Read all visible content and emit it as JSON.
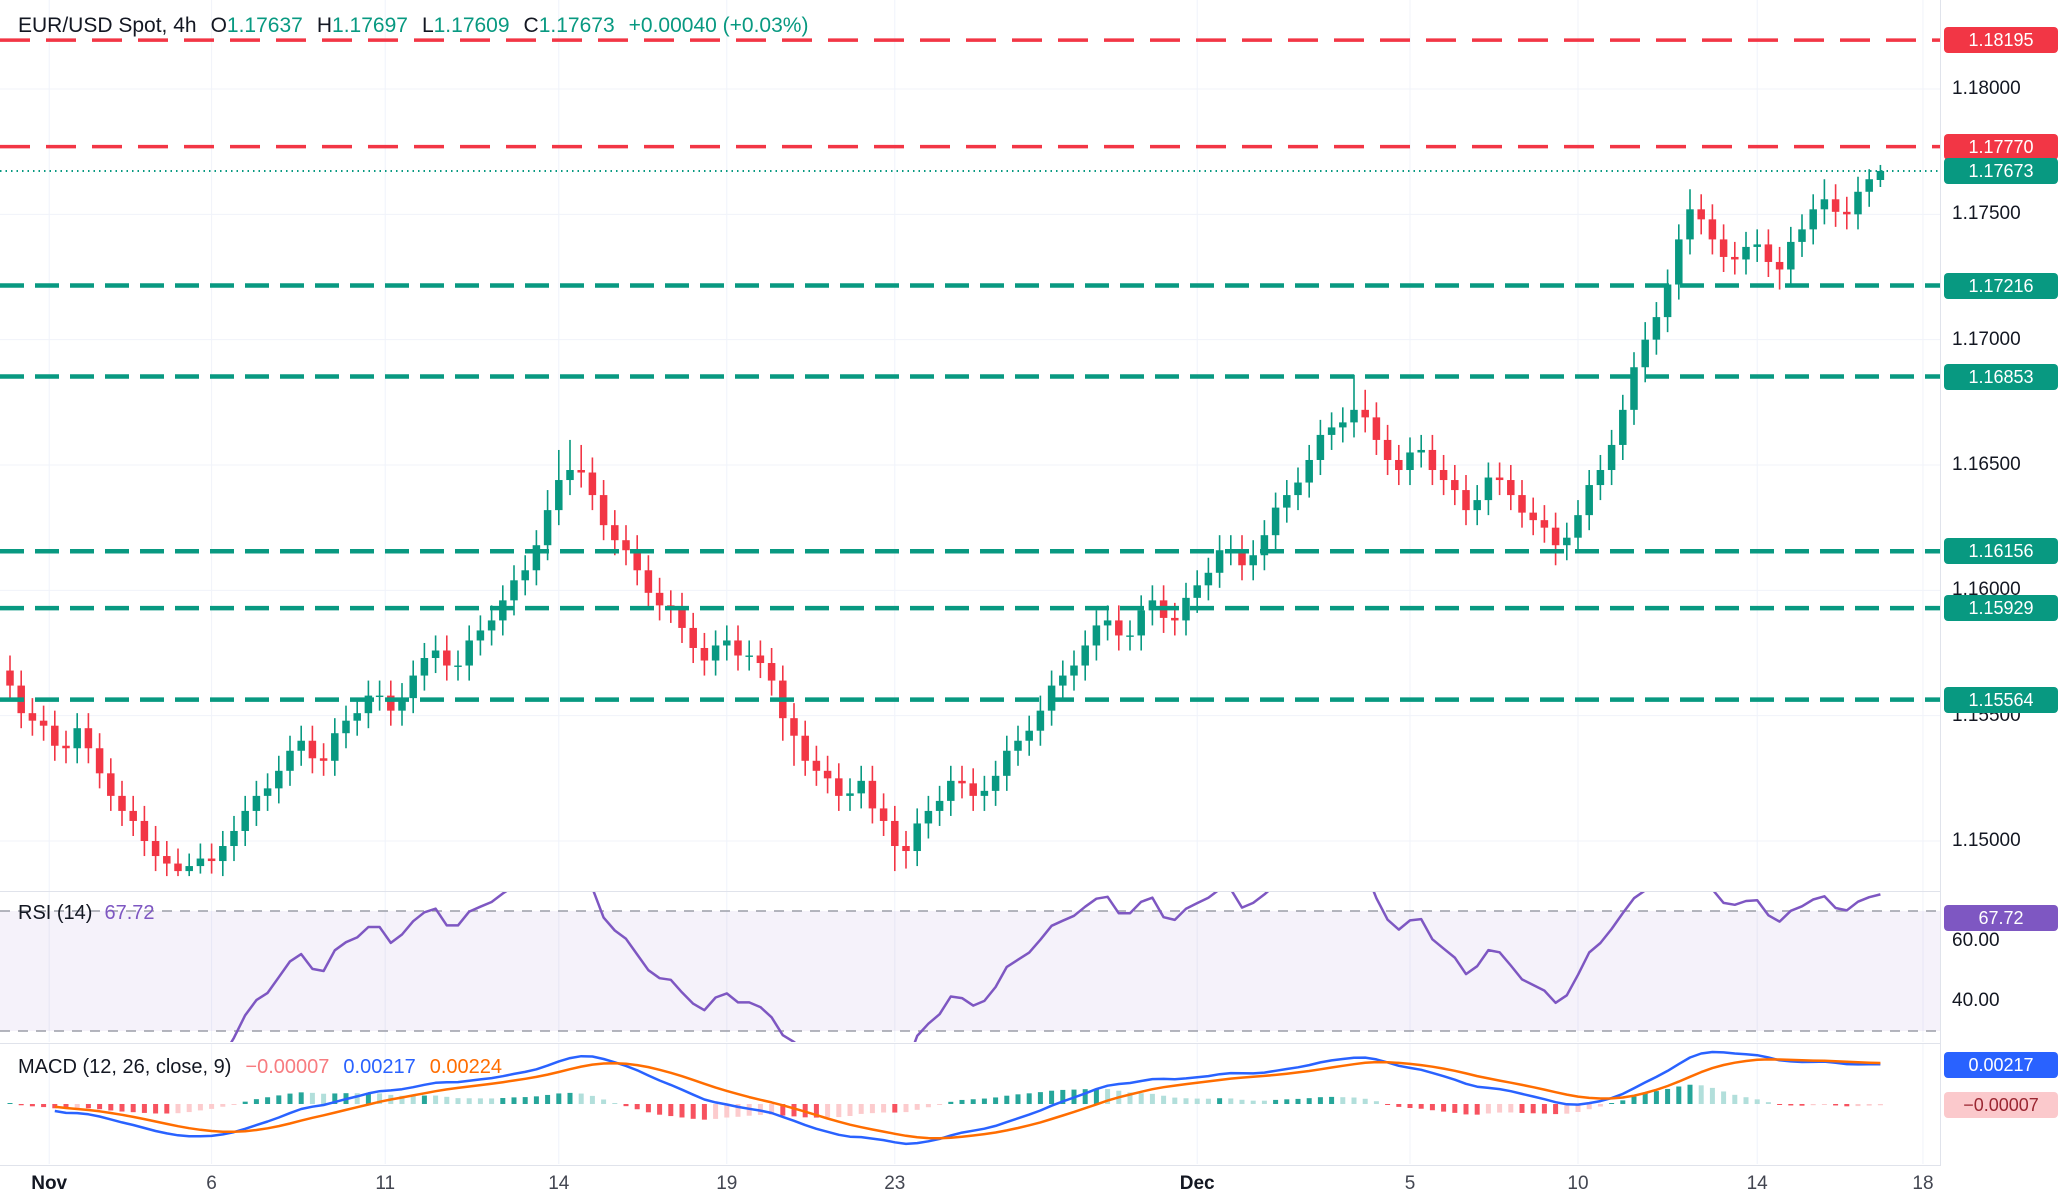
{
  "header": {
    "symbol": "EUR/USD Spot, 4h",
    "ohlc": {
      "o_label": "O",
      "o": "1.17637",
      "h_label": "H",
      "h": "1.17697",
      "l_label": "L",
      "l": "1.17609",
      "c_label": "C",
      "c": "1.17673"
    },
    "change": "+0.00040 (+0.03%)"
  },
  "colors": {
    "up": "#089981",
    "down": "#f23645",
    "resistance": "#f23645",
    "support": "#089981",
    "rsi": "#7e57c2",
    "macd_line": "#2962ff",
    "signal_line": "#ff6d00",
    "hist_pos": "#26a69a",
    "hist_pos_weak": "#b2dfdb",
    "hist_neg": "#f7525f",
    "hist_neg_weak": "#fccbcd",
    "grid": "#f0f3fa",
    "axis_text": "#131722"
  },
  "price_axis": {
    "ticks": [
      {
        "label": "1.18000",
        "value": 1.18
      },
      {
        "label": "1.17500",
        "value": 1.175
      },
      {
        "label": "1.17000",
        "value": 1.17
      },
      {
        "label": "1.16500",
        "value": 1.165
      },
      {
        "label": "1.16000",
        "value": 1.16
      },
      {
        "label": "1.15500",
        "value": 1.155
      },
      {
        "label": "1.15000",
        "value": 1.15
      }
    ]
  },
  "levels": [
    {
      "label": "1.18195",
      "value": 1.18195,
      "kind": "resistance"
    },
    {
      "label": "1.17770",
      "value": 1.1777,
      "kind": "resistance"
    },
    {
      "label": "1.17673",
      "value": 1.17673,
      "kind": "current"
    },
    {
      "label": "1.17216",
      "value": 1.17216,
      "kind": "support"
    },
    {
      "label": "1.16853",
      "value": 1.16853,
      "kind": "support"
    },
    {
      "label": "1.16156",
      "value": 1.16156,
      "kind": "support"
    },
    {
      "label": "1.15929",
      "value": 1.15929,
      "kind": "support"
    },
    {
      "label": "1.15564",
      "value": 1.15564,
      "kind": "support"
    }
  ],
  "time_axis": [
    {
      "label": "Nov",
      "i": 3.5,
      "bold": true
    },
    {
      "label": "6",
      "i": 18,
      "bold": false
    },
    {
      "label": "11",
      "i": 33.5,
      "bold": false
    },
    {
      "label": "14",
      "i": 49,
      "bold": false
    },
    {
      "label": "19",
      "i": 64,
      "bold": false
    },
    {
      "label": "23",
      "i": 79,
      "bold": false
    },
    {
      "label": "Dec",
      "i": 106,
      "bold": true
    },
    {
      "label": "5",
      "i": 125,
      "bold": false
    },
    {
      "label": "10",
      "i": 140,
      "bold": false
    },
    {
      "label": "14",
      "i": 156,
      "bold": false
    },
    {
      "label": "18",
      "i": 170.8,
      "bold": false
    }
  ],
  "rsi": {
    "legend": "RSI (14)",
    "value": "67.72",
    "value_num": 67.72,
    "period": 14,
    "upper_band": 70,
    "lower_band": 30,
    "axis_labels": [
      {
        "label": "60.00",
        "value": 60
      },
      {
        "label": "40.00",
        "value": 40
      }
    ]
  },
  "macd": {
    "legend": "MACD (12, 26, close, 9)",
    "params": [
      12,
      26,
      9
    ],
    "hist_value": "−0.00007",
    "macd_value": "0.00217",
    "signal_value": "0.00224",
    "hist_num": -7e-05,
    "macd_num": 0.00217,
    "signal_num": 0.00224
  },
  "chart_data": {
    "type": "candlestick",
    "title": "EUR/USD Spot, 4h",
    "symbol": "EUR/USD Spot",
    "interval": "4h",
    "x_range": [
      "Nov 1",
      "Dec 18"
    ],
    "ylim": [
      1.1468,
      1.1832
    ],
    "last_ohlc": {
      "open": 1.17637,
      "high": 1.17697,
      "low": 1.17609,
      "close": 1.17673
    },
    "levels_resistance": [
      1.18195,
      1.1777
    ],
    "levels_support": [
      1.17216,
      1.16853,
      1.16156,
      1.15929,
      1.15564
    ],
    "current_price": 1.17673,
    "candles": [
      [
        1.1568,
        1.1574,
        1.1556,
        1.1562
      ],
      [
        1.1562,
        1.1568,
        1.1545,
        1.1551
      ],
      [
        1.1551,
        1.1557,
        1.1542,
        1.1548
      ],
      [
        1.1548,
        1.1554,
        1.154,
        1.1546
      ],
      [
        1.1546,
        1.1552,
        1.1532,
        1.1538
      ],
      [
        1.1538,
        1.1544,
        1.1531,
        1.1537
      ],
      [
        1.1537,
        1.1551,
        1.1531,
        1.1545
      ],
      [
        1.1545,
        1.1551,
        1.1531,
        1.1537
      ],
      [
        1.1537,
        1.1543,
        1.1521,
        1.1527
      ],
      [
        1.1527,
        1.1533,
        1.1512,
        1.1518
      ],
      [
        1.1518,
        1.1524,
        1.1506,
        1.1512
      ],
      [
        1.1512,
        1.1518,
        1.1502,
        1.1508
      ],
      [
        1.1508,
        1.1514,
        1.1494,
        1.15
      ],
      [
        1.15,
        1.1506,
        1.1488,
        1.1494
      ],
      [
        1.1494,
        1.15,
        1.1486,
        1.1491
      ],
      [
        1.1491,
        1.1497,
        1.1486,
        1.1488
      ],
      [
        1.1488,
        1.1495,
        1.1486,
        1.149
      ],
      [
        1.149,
        1.1499,
        1.1487,
        1.1493
      ],
      [
        1.1493,
        1.1499,
        1.1487,
        1.1492
      ],
      [
        1.1492,
        1.1504,
        1.1486,
        1.1498
      ],
      [
        1.1498,
        1.151,
        1.1492,
        1.1504
      ],
      [
        1.1504,
        1.1518,
        1.1498,
        1.1512
      ],
      [
        1.1512,
        1.1524,
        1.1506,
        1.1518
      ],
      [
        1.1518,
        1.1527,
        1.1512,
        1.1521
      ],
      [
        1.1521,
        1.1534,
        1.1515,
        1.1528
      ],
      [
        1.1528,
        1.1542,
        1.1522,
        1.1536
      ],
      [
        1.1536,
        1.1546,
        1.153,
        1.154
      ],
      [
        1.154,
        1.1546,
        1.1527,
        1.1533
      ],
      [
        1.1533,
        1.1539,
        1.1526,
        1.1532
      ],
      [
        1.1532,
        1.1549,
        1.1526,
        1.1543
      ],
      [
        1.1543,
        1.1554,
        1.1537,
        1.1548
      ],
      [
        1.1548,
        1.1557,
        1.1542,
        1.1551
      ],
      [
        1.1551,
        1.1564,
        1.1545,
        1.1558
      ],
      [
        1.1558,
        1.1564,
        1.1552,
        1.1558
      ],
      [
        1.1558,
        1.1564,
        1.1546,
        1.1552
      ],
      [
        1.1552,
        1.1563,
        1.1546,
        1.1557
      ],
      [
        1.1557,
        1.1572,
        1.1551,
        1.1566
      ],
      [
        1.1566,
        1.1579,
        1.156,
        1.1573
      ],
      [
        1.1573,
        1.1582,
        1.1567,
        1.1576
      ],
      [
        1.1576,
        1.1582,
        1.1564,
        1.157
      ],
      [
        1.157,
        1.1576,
        1.1564,
        1.157
      ],
      [
        1.157,
        1.1586,
        1.1564,
        1.158
      ],
      [
        1.158,
        1.159,
        1.1574,
        1.1584
      ],
      [
        1.1584,
        1.1594,
        1.1578,
        1.1588
      ],
      [
        1.1588,
        1.1602,
        1.1582,
        1.1596
      ],
      [
        1.1596,
        1.161,
        1.159,
        1.1604
      ],
      [
        1.1604,
        1.1614,
        1.1598,
        1.1608
      ],
      [
        1.1608,
        1.1624,
        1.1602,
        1.1618
      ],
      [
        1.1618,
        1.164,
        1.1612,
        1.1632
      ],
      [
        1.1632,
        1.1656,
        1.1626,
        1.1644
      ],
      [
        1.1644,
        1.166,
        1.1638,
        1.1648
      ],
      [
        1.1648,
        1.1658,
        1.1641,
        1.1647
      ],
      [
        1.1647,
        1.1653,
        1.1632,
        1.1638
      ],
      [
        1.1638,
        1.1644,
        1.162,
        1.1626
      ],
      [
        1.1626,
        1.1632,
        1.1614,
        1.162
      ],
      [
        1.162,
        1.1626,
        1.161,
        1.1616
      ],
      [
        1.1616,
        1.1622,
        1.1602,
        1.1608
      ],
      [
        1.1608,
        1.1614,
        1.1593,
        1.1599
      ],
      [
        1.1599,
        1.1605,
        1.1588,
        1.1594
      ],
      [
        1.1594,
        1.16,
        1.1587,
        1.1593
      ],
      [
        1.1593,
        1.1599,
        1.1579,
        1.1585
      ],
      [
        1.1585,
        1.1591,
        1.1571,
        1.1577
      ],
      [
        1.1577,
        1.1583,
        1.1566,
        1.1572
      ],
      [
        1.1572,
        1.1584,
        1.1566,
        1.1578
      ],
      [
        1.1578,
        1.1586,
        1.1572,
        1.158
      ],
      [
        1.158,
        1.1586,
        1.1568,
        1.1574
      ],
      [
        1.1574,
        1.158,
        1.1568,
        1.1574
      ],
      [
        1.1574,
        1.158,
        1.1565,
        1.1571
      ],
      [
        1.1571,
        1.1577,
        1.1558,
        1.1564
      ],
      [
        1.1564,
        1.157,
        1.154,
        1.1549
      ],
      [
        1.1549,
        1.1555,
        1.153,
        1.1542
      ],
      [
        1.1542,
        1.1548,
        1.1526,
        1.1532
      ],
      [
        1.1532,
        1.1538,
        1.1522,
        1.1528
      ],
      [
        1.1528,
        1.1534,
        1.1519,
        1.1525
      ],
      [
        1.1525,
        1.1531,
        1.1512,
        1.1518
      ],
      [
        1.1518,
        1.1525,
        1.1512,
        1.1519
      ],
      [
        1.1519,
        1.153,
        1.1513,
        1.1524
      ],
      [
        1.1524,
        1.153,
        1.1507,
        1.1513
      ],
      [
        1.1513,
        1.1519,
        1.1502,
        1.1508
      ],
      [
        1.1508,
        1.1514,
        1.1488,
        1.1498
      ],
      [
        1.1498,
        1.1504,
        1.1489,
        1.1496
      ],
      [
        1.1496,
        1.1513,
        1.149,
        1.1507
      ],
      [
        1.1507,
        1.1518,
        1.1501,
        1.1512
      ],
      [
        1.1512,
        1.1522,
        1.1506,
        1.1516
      ],
      [
        1.1516,
        1.153,
        1.151,
        1.1524
      ],
      [
        1.1524,
        1.153,
        1.1517,
        1.1523
      ],
      [
        1.1523,
        1.1529,
        1.1512,
        1.1518
      ],
      [
        1.1518,
        1.1526,
        1.1512,
        1.152
      ],
      [
        1.152,
        1.1532,
        1.1514,
        1.1526
      ],
      [
        1.1526,
        1.1542,
        1.152,
        1.1536
      ],
      [
        1.1536,
        1.1546,
        1.153,
        1.154
      ],
      [
        1.154,
        1.155,
        1.1534,
        1.1544
      ],
      [
        1.1544,
        1.1558,
        1.1538,
        1.1552
      ],
      [
        1.1552,
        1.1568,
        1.1546,
        1.1562
      ],
      [
        1.1562,
        1.1572,
        1.1556,
        1.1566
      ],
      [
        1.1566,
        1.1576,
        1.156,
        1.157
      ],
      [
        1.157,
        1.1584,
        1.1564,
        1.1578
      ],
      [
        1.1578,
        1.1592,
        1.1572,
        1.1586
      ],
      [
        1.1586,
        1.1594,
        1.158,
        1.1588
      ],
      [
        1.1588,
        1.1594,
        1.1576,
        1.1582
      ],
      [
        1.1582,
        1.1588,
        1.1576,
        1.1582
      ],
      [
        1.1582,
        1.1598,
        1.1576,
        1.1592
      ],
      [
        1.1592,
        1.1602,
        1.1586,
        1.1596
      ],
      [
        1.1596,
        1.1602,
        1.1583,
        1.1589
      ],
      [
        1.1589,
        1.1595,
        1.1582,
        1.1588
      ],
      [
        1.1588,
        1.1603,
        1.1582,
        1.1597
      ],
      [
        1.1597,
        1.1608,
        1.1591,
        1.1602
      ],
      [
        1.1602,
        1.1613,
        1.1596,
        1.1607
      ],
      [
        1.1607,
        1.1622,
        1.1601,
        1.1616
      ],
      [
        1.1616,
        1.1622,
        1.161,
        1.1616
      ],
      [
        1.1616,
        1.1622,
        1.1604,
        1.161
      ],
      [
        1.161,
        1.162,
        1.1604,
        1.1614
      ],
      [
        1.1614,
        1.1628,
        1.1608,
        1.1622
      ],
      [
        1.1622,
        1.1639,
        1.1616,
        1.1633
      ],
      [
        1.1633,
        1.1644,
        1.1627,
        1.1638
      ],
      [
        1.1638,
        1.1649,
        1.1632,
        1.1643
      ],
      [
        1.1643,
        1.1658,
        1.1637,
        1.1652
      ],
      [
        1.1652,
        1.1668,
        1.1646,
        1.1662
      ],
      [
        1.1662,
        1.1671,
        1.1656,
        1.1665
      ],
      [
        1.1665,
        1.1673,
        1.1659,
        1.1667
      ],
      [
        1.1667,
        1.1686,
        1.1661,
        1.1672
      ],
      [
        1.1672,
        1.168,
        1.1663,
        1.1669
      ],
      [
        1.1669,
        1.1675,
        1.1654,
        1.166
      ],
      [
        1.166,
        1.1666,
        1.1646,
        1.1652
      ],
      [
        1.1652,
        1.1658,
        1.1642,
        1.1648
      ],
      [
        1.1648,
        1.1661,
        1.1642,
        1.1655
      ],
      [
        1.1655,
        1.1662,
        1.1649,
        1.1656
      ],
      [
        1.1656,
        1.1662,
        1.1642,
        1.1648
      ],
      [
        1.1648,
        1.1654,
        1.1638,
        1.1644
      ],
      [
        1.1644,
        1.165,
        1.1634,
        1.164
      ],
      [
        1.164,
        1.1646,
        1.1626,
        1.1632
      ],
      [
        1.1632,
        1.1642,
        1.1626,
        1.1636
      ],
      [
        1.1636,
        1.1651,
        1.163,
        1.1645
      ],
      [
        1.1645,
        1.1651,
        1.1638,
        1.1644
      ],
      [
        1.1644,
        1.165,
        1.1632,
        1.1638
      ],
      [
        1.1638,
        1.1644,
        1.1625,
        1.1631
      ],
      [
        1.1631,
        1.1637,
        1.1622,
        1.1628
      ],
      [
        1.1628,
        1.1634,
        1.1619,
        1.1625
      ],
      [
        1.1625,
        1.1631,
        1.161,
        1.1618
      ],
      [
        1.1618,
        1.1627,
        1.1612,
        1.1621
      ],
      [
        1.1621,
        1.1636,
        1.1615,
        1.163
      ],
      [
        1.163,
        1.1648,
        1.1624,
        1.1642
      ],
      [
        1.1642,
        1.1654,
        1.1636,
        1.1648
      ],
      [
        1.1648,
        1.1664,
        1.1642,
        1.1658
      ],
      [
        1.1658,
        1.1678,
        1.1652,
        1.1672
      ],
      [
        1.1672,
        1.1695,
        1.1666,
        1.1689
      ],
      [
        1.1689,
        1.1707,
        1.1683,
        1.17
      ],
      [
        1.17,
        1.1715,
        1.1694,
        1.1709
      ],
      [
        1.1709,
        1.1728,
        1.1703,
        1.1722
      ],
      [
        1.1722,
        1.1746,
        1.1716,
        1.174
      ],
      [
        1.174,
        1.176,
        1.1734,
        1.1752
      ],
      [
        1.1752,
        1.1758,
        1.1742,
        1.1748
      ],
      [
        1.1748,
        1.1754,
        1.1734,
        1.174
      ],
      [
        1.174,
        1.1746,
        1.1727,
        1.1733
      ],
      [
        1.1733,
        1.1739,
        1.1726,
        1.1732
      ],
      [
        1.1732,
        1.1743,
        1.1726,
        1.1737
      ],
      [
        1.1737,
        1.1744,
        1.1731,
        1.1738
      ],
      [
        1.1738,
        1.1744,
        1.1725,
        1.1731
      ],
      [
        1.1731,
        1.1737,
        1.172,
        1.1728
      ],
      [
        1.1728,
        1.1745,
        1.1722,
        1.1739
      ],
      [
        1.1739,
        1.175,
        1.1733,
        1.1744
      ],
      [
        1.1744,
        1.1758,
        1.1738,
        1.1752
      ],
      [
        1.1752,
        1.1764,
        1.1746,
        1.1756
      ],
      [
        1.1756,
        1.1762,
        1.1745,
        1.1751
      ],
      [
        1.1751,
        1.1757,
        1.1744,
        1.175
      ],
      [
        1.175,
        1.1765,
        1.1744,
        1.1759
      ],
      [
        1.1759,
        1.1768,
        1.1753,
        1.1764
      ],
      [
        1.17637,
        1.17697,
        1.17609,
        1.17673
      ]
    ]
  }
}
